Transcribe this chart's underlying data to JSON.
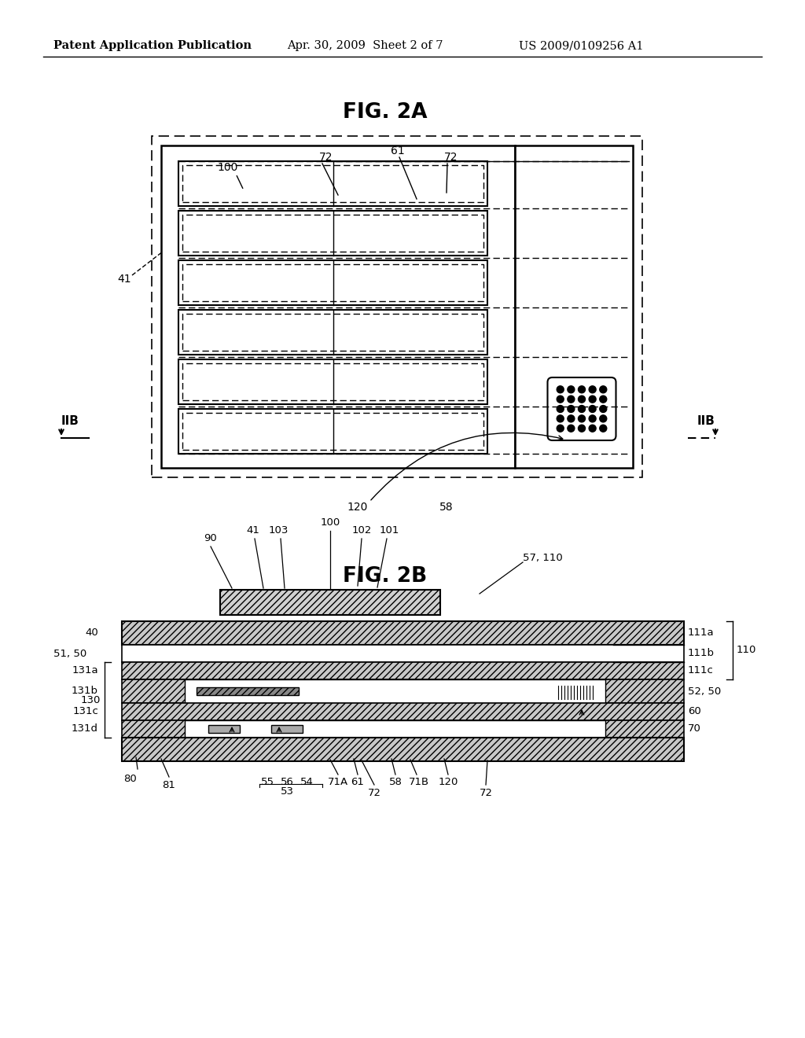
{
  "bg_color": "#ffffff",
  "header_left": "Patent Application Publication",
  "header_mid": "Apr. 30, 2009  Sheet 2 of 7",
  "header_right": "US 2009/0109256 A1",
  "fig2a_title": "FIG. 2A",
  "fig2b_title": "FIG. 2B"
}
